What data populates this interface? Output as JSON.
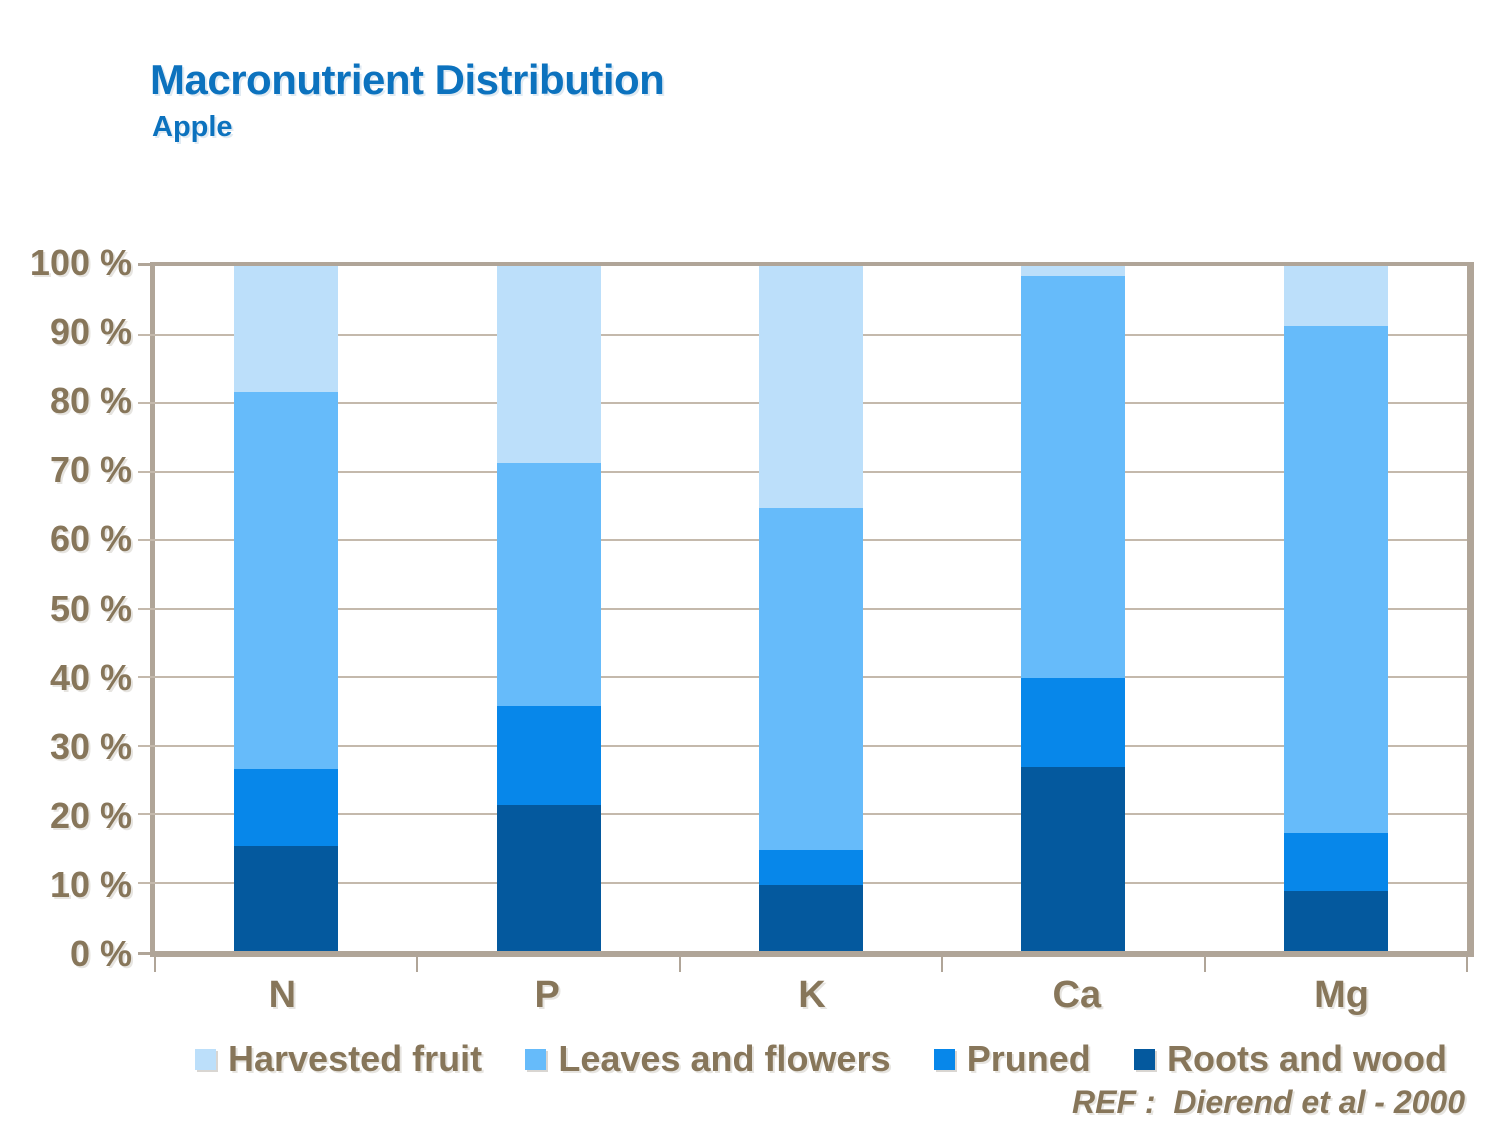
{
  "slide": {
    "title": "Macronutrient Distribution",
    "subtitle": "Apple",
    "reference": "REF :  Dierend et al - 2000"
  },
  "colors": {
    "title_blue": "#0C72BE",
    "label_brown": "#87765A",
    "axis_border_tan": "#B0A598",
    "gridline_tan": "#C4B9AC",
    "plot_background": "#FFFFFF"
  },
  "chart_data": {
    "type": "bar",
    "subtype": "stacked-100-percent-column",
    "title": "Macronutrient Distribution",
    "subtitle": "Apple",
    "categories": [
      "N",
      "P",
      "K",
      "Ca",
      "Mg"
    ],
    "series": [
      {
        "name": "Harvested fruit",
        "color": "#BCDFFA",
        "values": [
          18.4,
          28.7,
          35.3,
          1.5,
          8.8
        ]
      },
      {
        "name": "Leaves and flowers",
        "color": "#66BBFA",
        "values": [
          55.0,
          35.6,
          50.0,
          58.7,
          73.9
        ]
      },
      {
        "name": "Pruned",
        "color": "#0787EA",
        "values": [
          11.3,
          14.4,
          5.0,
          13.0,
          8.6
        ]
      },
      {
        "name": "Roots and wood",
        "color": "#04599E",
        "values": [
          15.3,
          21.3,
          9.7,
          26.8,
          8.7
        ]
      }
    ],
    "stack_order_bottom_to_top": [
      "Roots and wood",
      "Pruned",
      "Leaves and flowers",
      "Harvested fruit"
    ],
    "y_ticks": [
      "100 %",
      "90 %",
      "80 %",
      "70 %",
      "60 %",
      "50 %",
      "40 %",
      "30 %",
      "20 %",
      "10 %",
      "0 %"
    ],
    "ylim": [
      0,
      100
    ],
    "grid": true,
    "legend_position": "bottom",
    "annotation": "REF :  Dierend et al - 2000"
  }
}
